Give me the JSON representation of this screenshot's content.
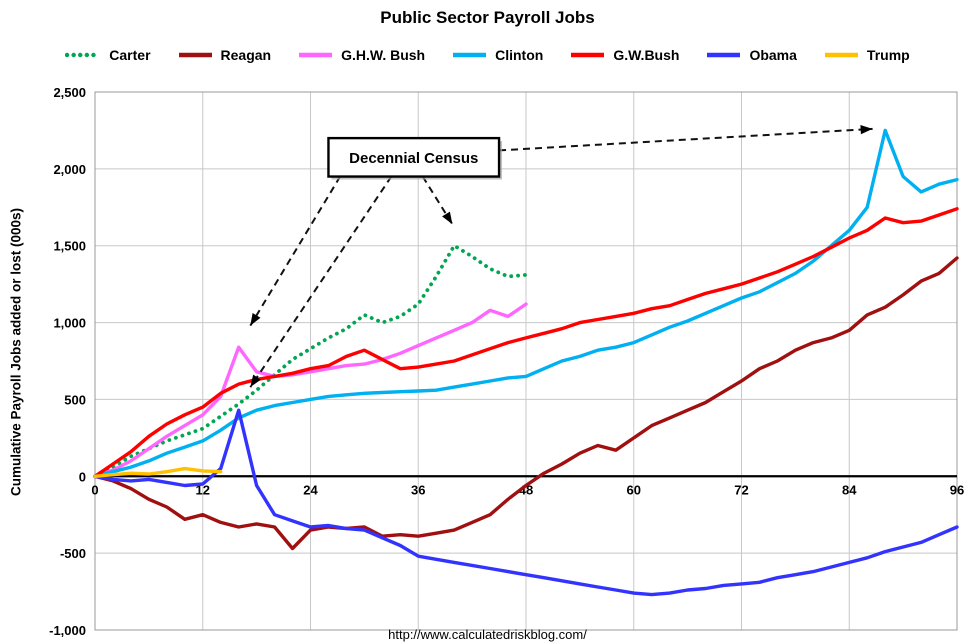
{
  "footer": {
    "url": "http://www.calculatedriskblog.com/"
  },
  "chart_data": {
    "type": "line",
    "title": "Public Sector Payroll Jobs",
    "xlabel": "",
    "ylabel": "Cumulative Payroll Jobs added or lost (000s)",
    "xlim": [
      0,
      96
    ],
    "ylim": [
      -1000,
      2500
    ],
    "grid": true,
    "legend_position": "top",
    "xticks": [
      0,
      12,
      24,
      36,
      48,
      60,
      72,
      84,
      96
    ],
    "yticks": [
      {
        "value": 2500,
        "label": "2,500"
      },
      {
        "value": 2000,
        "label": "2,000"
      },
      {
        "value": 1500,
        "label": "1,500"
      },
      {
        "value": 1000,
        "label": "1,000"
      },
      {
        "value": 500,
        "label": "500"
      },
      {
        "value": 0,
        "label": "0"
      },
      {
        "value": -500,
        "label": "-500"
      },
      {
        "value": -1000,
        "label": "-1,000"
      }
    ],
    "series": [
      {
        "id": "carter",
        "name": "Carter",
        "color": "#00a651",
        "line_style": "dotted",
        "x_start": 0,
        "x_step": 2,
        "values": [
          0,
          60,
          130,
          180,
          230,
          270,
          310,
          390,
          470,
          560,
          660,
          760,
          830,
          900,
          960,
          1050,
          1000,
          1040,
          1120,
          1300,
          1500,
          1430,
          1350,
          1300,
          1310
        ]
      },
      {
        "id": "reagan",
        "name": "Reagan",
        "color": "#a01010",
        "line_style": "solid",
        "x_start": 0,
        "x_step": 2,
        "values": [
          0,
          -30,
          -80,
          -150,
          -200,
          -280,
          -250,
          -300,
          -330,
          -310,
          -330,
          -470,
          -350,
          -330,
          -340,
          -330,
          -390,
          -380,
          -390,
          -370,
          -350,
          -300,
          -250,
          -150,
          -60,
          20,
          80,
          150,
          200,
          170,
          250,
          330,
          380,
          430,
          480,
          550,
          620,
          700,
          750,
          820,
          870,
          900,
          950,
          1050,
          1100,
          1180,
          1270,
          1320,
          1420
        ]
      },
      {
        "id": "ghw-bush",
        "name": "G.H.W. Bush",
        "color": "#ff66ff",
        "line_style": "solid",
        "x_start": 0,
        "x_step": 2,
        "values": [
          0,
          40,
          100,
          180,
          260,
          330,
          400,
          520,
          840,
          680,
          650,
          660,
          680,
          700,
          720,
          730,
          760,
          800,
          850,
          900,
          950,
          1000,
          1080,
          1040,
          1120
        ]
      },
      {
        "id": "clinton",
        "name": "Clinton",
        "color": "#00b0f0",
        "line_style": "solid",
        "x_start": 0,
        "x_step": 2,
        "values": [
          0,
          30,
          60,
          100,
          150,
          190,
          230,
          300,
          380,
          430,
          460,
          480,
          500,
          520,
          530,
          540,
          545,
          550,
          555,
          560,
          580,
          600,
          620,
          640,
          650,
          700,
          750,
          780,
          820,
          840,
          870,
          920,
          970,
          1010,
          1060,
          1110,
          1160,
          1200,
          1260,
          1320,
          1400,
          1500,
          1600,
          1750,
          2250,
          1950,
          1850,
          1900,
          1930
        ]
      },
      {
        "id": "gw-bush",
        "name": "G.W.Bush",
        "color": "#ff0000",
        "line_style": "solid",
        "x_start": 0,
        "x_step": 2,
        "values": [
          0,
          80,
          160,
          260,
          340,
          400,
          450,
          540,
          600,
          630,
          650,
          670,
          700,
          720,
          780,
          820,
          760,
          700,
          710,
          730,
          750,
          790,
          830,
          870,
          900,
          930,
          960,
          1000,
          1020,
          1040,
          1060,
          1090,
          1110,
          1150,
          1190,
          1220,
          1250,
          1290,
          1330,
          1380,
          1430,
          1490,
          1550,
          1600,
          1680,
          1650,
          1660,
          1700,
          1740
        ]
      },
      {
        "id": "obama",
        "name": "Obama",
        "color": "#3333ff",
        "line_style": "solid",
        "x_start": 0,
        "x_step": 2,
        "values": [
          0,
          -20,
          -30,
          -20,
          -40,
          -60,
          -50,
          50,
          430,
          -60,
          -250,
          -290,
          -330,
          -320,
          -340,
          -350,
          -400,
          -450,
          -520,
          -540,
          -560,
          -580,
          -600,
          -620,
          -640,
          -660,
          -680,
          -700,
          -720,
          -740,
          -760,
          -770,
          -760,
          -740,
          -730,
          -710,
          -700,
          -690,
          -660,
          -640,
          -620,
          -590,
          -560,
          -530,
          -490,
          -460,
          -430,
          -380,
          -330
        ]
      },
      {
        "id": "trump",
        "name": "Trump",
        "color": "#ffc000",
        "line_style": "solid",
        "x_start": 0,
        "x_step": 2,
        "values": [
          0,
          10,
          20,
          15,
          30,
          50,
          35,
          30
        ]
      }
    ],
    "annotation": {
      "label": "Decennial Census",
      "box": {
        "month_from": 26,
        "month_to": 45,
        "value_from": 1950,
        "value_to": 2200
      },
      "arrows": [
        {
          "from_month": 27.3,
          "from_value": 1950,
          "to_month": 17.3,
          "to_value": 980
        },
        {
          "from_month": 33,
          "from_value": 1950,
          "to_month": 17.3,
          "to_value": 580
        },
        {
          "from_month": 36.5,
          "from_value": 1950,
          "to_month": 39.8,
          "to_value": 1640
        },
        {
          "from_month": 45,
          "from_value": 2120,
          "to_month": 86.6,
          "to_value": 2260
        }
      ]
    }
  }
}
